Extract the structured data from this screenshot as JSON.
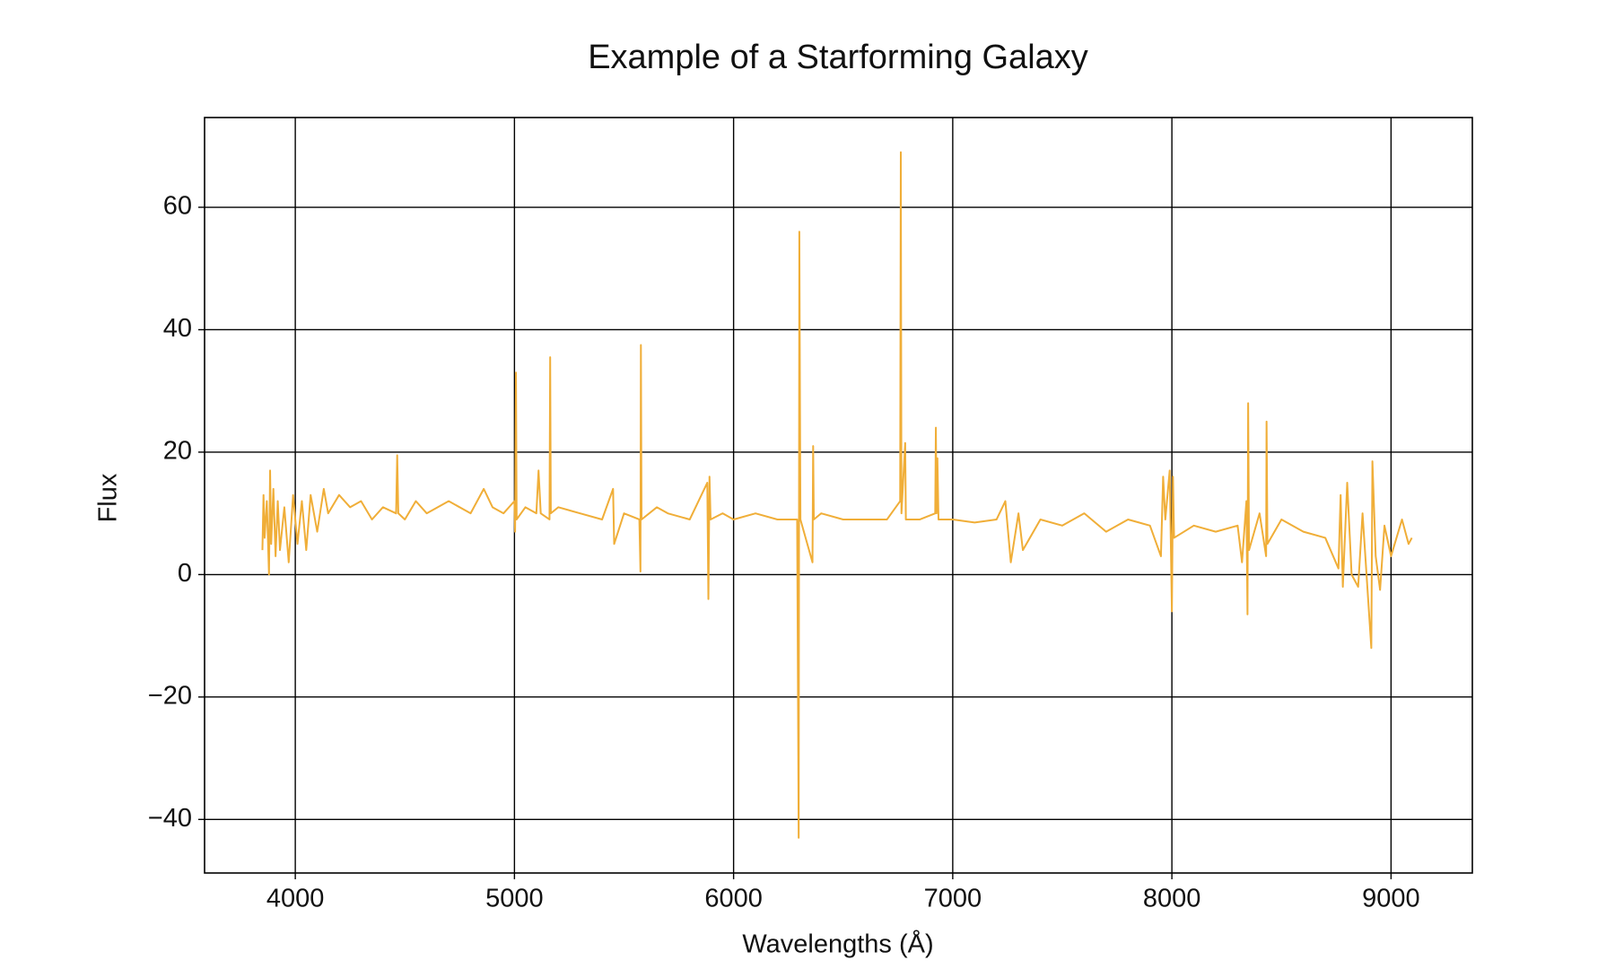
{
  "chart_data": {
    "type": "line",
    "title": "Example of a Starforming Galaxy",
    "x_label": "Wavelengths (Å)",
    "y_label": "Flux",
    "x": [
      3850,
      3855,
      3860,
      3870,
      3880,
      3885,
      3890,
      3900,
      3910,
      3920,
      3930,
      3950,
      3970,
      3990,
      4010,
      4030,
      4050,
      4070,
      4100,
      4130,
      4150,
      4200,
      4250,
      4300,
      4350,
      4400,
      4460,
      4465,
      4470,
      4500,
      4550,
      4600,
      4700,
      4800,
      4860,
      4900,
      4950,
      5000,
      5003,
      5007,
      5010,
      5050,
      5100,
      5110,
      5120,
      5160,
      5163,
      5166,
      5200,
      5300,
      5400,
      5450,
      5455,
      5500,
      5570,
      5575,
      5577,
      5580,
      5650,
      5700,
      5800,
      5880,
      5885,
      5890,
      5895,
      5950,
      6000,
      6100,
      6200,
      6290,
      6297,
      6300,
      6305,
      6360,
      6363,
      6366,
      6400,
      6500,
      6600,
      6700,
      6760,
      6763,
      6766,
      6783,
      6786,
      6850,
      6920,
      6923,
      6926,
      6930,
      6935,
      7000,
      7100,
      7200,
      7240,
      7265,
      7300,
      7320,
      7400,
      7500,
      7600,
      7700,
      7800,
      7900,
      7950,
      7960,
      7970,
      7990,
      8000,
      8005,
      8010,
      8100,
      8200,
      8300,
      8320,
      8340,
      8345,
      8348,
      8352,
      8400,
      8430,
      8432,
      8436,
      8500,
      8600,
      8700,
      8760,
      8770,
      8780,
      8800,
      8820,
      8850,
      8870,
      8910,
      8915,
      8930,
      8950,
      8970,
      9000,
      9050,
      9080,
      9095
    ],
    "series": [
      {
        "name": "Flux",
        "color": "#f0ae38",
        "values": [
          4,
          13,
          6,
          12,
          0,
          17,
          5,
          14,
          3,
          12,
          4,
          11,
          2,
          13,
          5,
          12,
          4,
          13,
          7,
          14,
          10,
          13,
          11,
          12,
          9,
          11,
          10,
          19.5,
          10,
          9,
          12,
          10,
          12,
          10,
          14,
          11,
          10,
          12,
          7,
          33,
          9,
          11,
          10,
          17,
          10,
          9,
          35.5,
          10,
          11,
          10,
          9,
          14,
          5,
          10,
          9,
          0.5,
          37.5,
          9,
          11,
          10,
          9,
          15,
          -4,
          16,
          9,
          10,
          9,
          10,
          9,
          9,
          -43,
          56,
          9,
          2,
          21,
          9,
          10,
          9,
          9,
          9,
          12,
          69,
          10,
          21.5,
          9,
          9,
          10,
          24,
          10,
          19,
          9,
          9,
          8.5,
          9,
          12,
          2,
          10,
          4,
          9,
          8,
          10,
          7,
          9,
          8,
          3,
          16,
          9,
          17,
          -6,
          16,
          6,
          8,
          7,
          8,
          2,
          12,
          -6.5,
          28,
          4,
          10,
          3,
          25,
          5,
          9,
          7,
          6,
          1,
          13,
          -2,
          15,
          0,
          -2,
          10,
          -12,
          18.5,
          3,
          -2.5,
          8,
          3,
          9,
          5,
          6
        ]
      }
    ],
    "xlim": [
      3586,
      9371
    ],
    "xticks": [
      4000,
      5000,
      6000,
      7000,
      8000,
      9000
    ],
    "ylim": [
      -48.75,
      74.66
    ],
    "yticks": [
      {
        "value": -40,
        "label": "−40"
      },
      {
        "value": -20,
        "label": "−20"
      },
      0,
      20,
      40,
      60
    ],
    "grid": true
  }
}
